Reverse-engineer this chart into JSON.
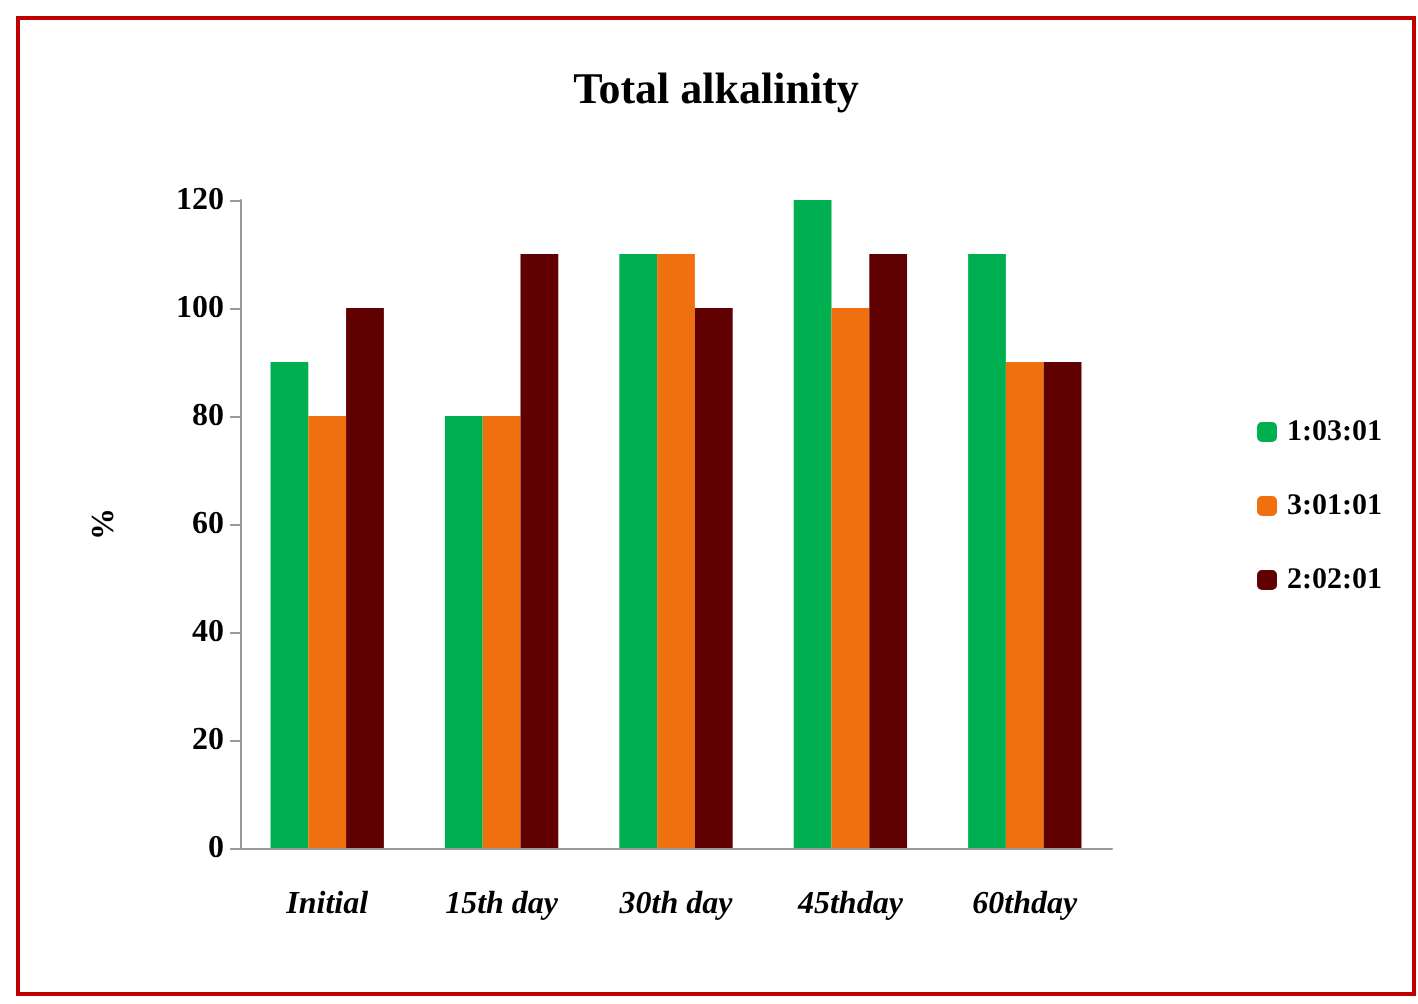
{
  "chart_data": {
    "type": "bar",
    "title": "Total alkalinity",
    "ylabel": "%",
    "categories": [
      "Initial",
      "15th day",
      "30th day",
      "45thday",
      "60thday"
    ],
    "series": [
      {
        "name": "1:03:01",
        "color": "#00b050",
        "values": [
          90,
          80,
          110,
          120,
          110
        ]
      },
      {
        "name": "3:01:01",
        "color": "#f07010",
        "values": [
          80,
          80,
          110,
          100,
          90
        ]
      },
      {
        "name": "2:02:01",
        "color": "#600000",
        "values": [
          100,
          110,
          100,
          110,
          90
        ]
      }
    ],
    "ylim": [
      0,
      120
    ],
    "yticks": [
      0,
      20,
      40,
      60,
      80,
      100,
      120
    ],
    "grid": false,
    "legend": "right"
  }
}
